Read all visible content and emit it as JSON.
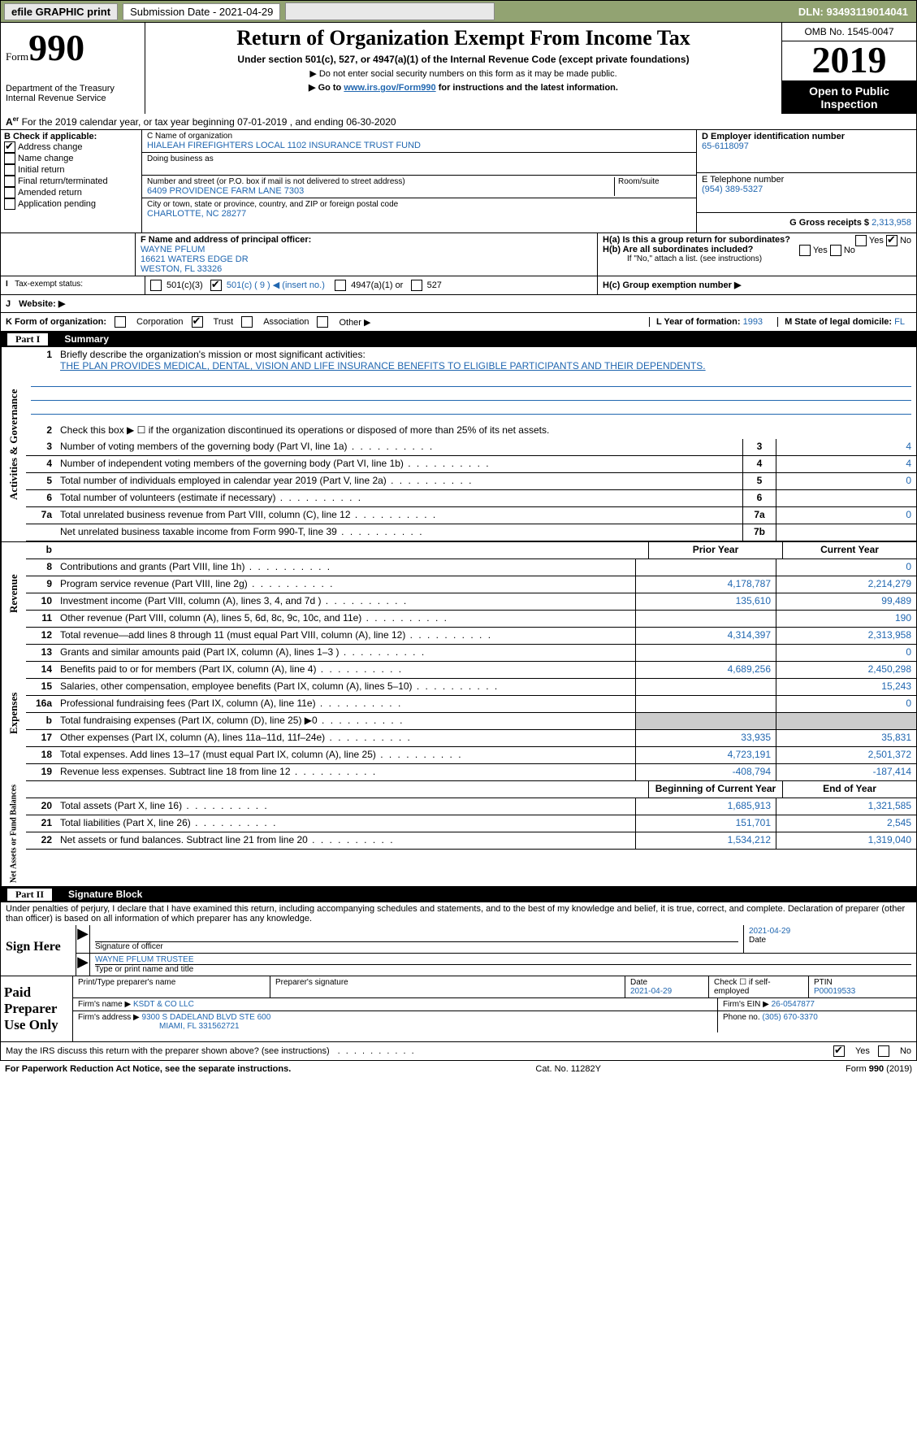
{
  "topbar": {
    "efile": "efile GRAPHIC print",
    "submission_label": "Submission Date - 2021-04-29",
    "dln": "DLN: 93493119014041"
  },
  "header": {
    "form_word": "Form",
    "form_num": "990",
    "dept": "Department of the Treasury\nInternal Revenue Service",
    "title": "Return of Organization Exempt From Income Tax",
    "subtitle": "Under section 501(c), 527, or 4947(a)(1) of the Internal Revenue Code (except private foundations)",
    "note1": "▶ Do not enter social security numbers on this form as it may be made public.",
    "note2_pre": "▶ Go to ",
    "note2_link": "www.irs.gov/Form990",
    "note2_post": " for instructions and the latest information.",
    "omb": "OMB No. 1545-0047",
    "year": "2019",
    "inspect": "Open to Public Inspection"
  },
  "line_a": "For the 2019 calendar year, or tax year beginning 07-01-2019    , and ending 06-30-2020",
  "box_b": {
    "label": "B Check if applicable:",
    "items": [
      "Address change",
      "Name change",
      "Initial return",
      "Final return/terminated",
      "Amended return",
      "Application pending"
    ],
    "checked_index": 0
  },
  "box_c": {
    "name_label": "C Name of organization",
    "name": "HIALEAH FIREFIGHTERS LOCAL 1102 INSURANCE TRUST FUND",
    "dba_label": "Doing business as",
    "addr_label": "Number and street (or P.O. box if mail is not delivered to street address)",
    "room_label": "Room/suite",
    "addr": "6409 PROVIDENCE FARM LANE 7303",
    "city_label": "City or town, state or province, country, and ZIP or foreign postal code",
    "city": "CHARLOTTE, NC  28277"
  },
  "box_d": {
    "label": "D Employer identification number",
    "value": "65-6118097"
  },
  "box_e": {
    "label": "E Telephone number",
    "value": "(954) 389-5327"
  },
  "box_g": {
    "label": "G Gross receipts $",
    "value": "2,313,958"
  },
  "box_f": {
    "label": "F  Name and address of principal officer:",
    "name": "WAYNE PFLUM",
    "addr1": "16621 WATERS EDGE DR",
    "addr2": "WESTON, FL  33326"
  },
  "box_h": {
    "ha_label": "H(a)  Is this a group return for subordinates?",
    "hb_label": "H(b)  Are all subordinates included?",
    "hb_note": "If \"No,\" attach a list. (see instructions)",
    "hc_label": "H(c)  Group exemption number ▶"
  },
  "tax_exempt": {
    "label": "Tax-exempt status:",
    "c9_val": "501(c) ( 9 ) ◀ (insert no.)"
  },
  "website_label": "Website: ▶",
  "line_k": {
    "label": "K Form of organization:",
    "opts": [
      "Corporation",
      "Trust",
      "Association",
      "Other ▶"
    ],
    "checked_index": 1
  },
  "line_l": {
    "label": "L Year of formation:",
    "value": "1993"
  },
  "line_m": {
    "label": "M State of legal domicile:",
    "value": "FL"
  },
  "part1": {
    "label": "Part I",
    "title": "Summary"
  },
  "summary": {
    "q1": "Briefly describe the organization's mission or most significant activities:",
    "mission": "THE PLAN PROVIDES MEDICAL, DENTAL, VISION AND LIFE INSURANCE BENEFITS TO ELIGIBLE PARTICIPANTS AND THEIR DEPENDENTS.",
    "q2": "Check this box ▶ ☐  if the organization discontinued its operations or disposed of more than 25% of its net assets.",
    "rows_small": [
      {
        "n": "3",
        "d": "Number of voting members of the governing body (Part VI, line 1a)",
        "box": "3",
        "v": "4"
      },
      {
        "n": "4",
        "d": "Number of independent voting members of the governing body (Part VI, line 1b)",
        "box": "4",
        "v": "4"
      },
      {
        "n": "5",
        "d": "Total number of individuals employed in calendar year 2019 (Part V, line 2a)",
        "box": "5",
        "v": "0"
      },
      {
        "n": "6",
        "d": "Total number of volunteers (estimate if necessary)",
        "box": "6",
        "v": ""
      },
      {
        "n": "7a",
        "d": "Total unrelated business revenue from Part VIII, column (C), line 12",
        "box": "7a",
        "v": "0"
      },
      {
        "n": "",
        "d": "Net unrelated business taxable income from Form 990-T, line 39",
        "box": "7b",
        "v": ""
      }
    ],
    "col_headers": {
      "b": "b",
      "prior": "Prior Year",
      "current": "Current Year"
    },
    "revenue": [
      {
        "n": "8",
        "d": "Contributions and grants (Part VIII, line 1h)",
        "p": "",
        "c": "0"
      },
      {
        "n": "9",
        "d": "Program service revenue (Part VIII, line 2g)",
        "p": "4,178,787",
        "c": "2,214,279"
      },
      {
        "n": "10",
        "d": "Investment income (Part VIII, column (A), lines 3, 4, and 7d )",
        "p": "135,610",
        "c": "99,489"
      },
      {
        "n": "11",
        "d": "Other revenue (Part VIII, column (A), lines 5, 6d, 8c, 9c, 10c, and 11e)",
        "p": "",
        "c": "190"
      },
      {
        "n": "12",
        "d": "Total revenue—add lines 8 through 11 (must equal Part VIII, column (A), line 12)",
        "p": "4,314,397",
        "c": "2,313,958"
      }
    ],
    "expenses": [
      {
        "n": "13",
        "d": "Grants and similar amounts paid (Part IX, column (A), lines 1–3 )",
        "p": "",
        "c": "0"
      },
      {
        "n": "14",
        "d": "Benefits paid to or for members (Part IX, column (A), line 4)",
        "p": "4,689,256",
        "c": "2,450,298"
      },
      {
        "n": "15",
        "d": "Salaries, other compensation, employee benefits (Part IX, column (A), lines 5–10)",
        "p": "",
        "c": "15,243"
      },
      {
        "n": "16a",
        "d": "Professional fundraising fees (Part IX, column (A), line 11e)",
        "p": "",
        "c": "0"
      },
      {
        "n": "b",
        "d": "Total fundraising expenses (Part IX, column (D), line 25) ▶0",
        "p": "gray",
        "c": "gray"
      },
      {
        "n": "17",
        "d": "Other expenses (Part IX, column (A), lines 11a–11d, 11f–24e)",
        "p": "33,935",
        "c": "35,831"
      },
      {
        "n": "18",
        "d": "Total expenses. Add lines 13–17 (must equal Part IX, column (A), line 25)",
        "p": "4,723,191",
        "c": "2,501,372"
      },
      {
        "n": "19",
        "d": "Revenue less expenses. Subtract line 18 from line 12",
        "p": "-408,794",
        "c": "-187,414"
      }
    ],
    "net_headers": {
      "begin": "Beginning of Current Year",
      "end": "End of Year"
    },
    "net": [
      {
        "n": "20",
        "d": "Total assets (Part X, line 16)",
        "p": "1,685,913",
        "c": "1,321,585"
      },
      {
        "n": "21",
        "d": "Total liabilities (Part X, line 26)",
        "p": "151,701",
        "c": "2,545"
      },
      {
        "n": "22",
        "d": "Net assets or fund balances. Subtract line 21 from line 20",
        "p": "1,534,212",
        "c": "1,319,040"
      }
    ]
  },
  "part2": {
    "label": "Part II",
    "title": "Signature Block"
  },
  "perjury": "Under penalties of perjury, I declare that I have examined this return, including accompanying schedules and statements, and to the best of my knowledge and belief, it is true, correct, and complete. Declaration of preparer (other than officer) is based on all information of which preparer has any knowledge.",
  "sign": {
    "label": "Sign Here",
    "sig_label": "Signature of officer",
    "date": "2021-04-29",
    "date_label": "Date",
    "name": "WAYNE PFLUM TRUSTEE",
    "name_label": "Type or print name and title"
  },
  "paid": {
    "label": "Paid Preparer Use Only",
    "h_name": "Print/Type preparer's name",
    "h_sig": "Preparer's signature",
    "h_date": "Date",
    "date_val": "2021-04-29",
    "h_check": "Check ☐ if self-employed",
    "h_ptin": "PTIN",
    "ptin": "P00019533",
    "firm_name_label": "Firm's name    ▶",
    "firm_name": "KSDT & CO LLC",
    "firm_ein_label": "Firm's EIN ▶",
    "firm_ein": "26-0547877",
    "firm_addr_label": "Firm's address ▶",
    "firm_addr1": "9300 S DADELAND BLVD STE 600",
    "firm_addr2": "MIAMI, FL  331562721",
    "phone_label": "Phone no.",
    "phone": "(305) 670-3370"
  },
  "discuss": "May the IRS discuss this return with the preparer shown above? (see instructions)",
  "footer": {
    "left": "For Paperwork Reduction Act Notice, see the separate instructions.",
    "mid": "Cat. No. 11282Y",
    "right": "Form 990 (2019)"
  },
  "yes": "Yes",
  "no": "No"
}
